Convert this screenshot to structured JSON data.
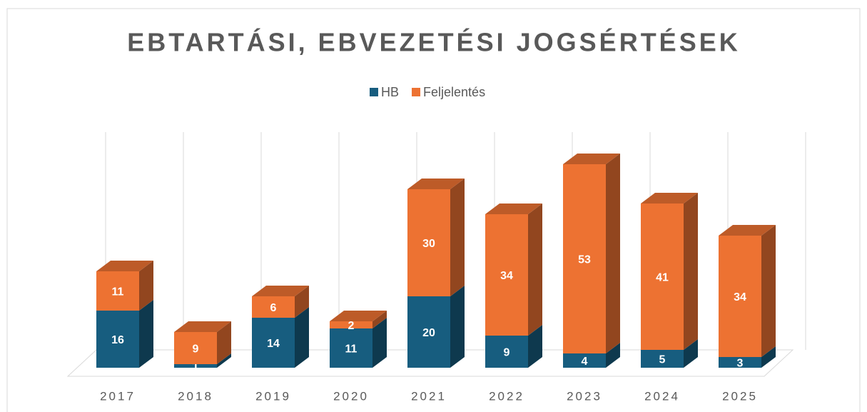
{
  "chart_data": {
    "type": "bar3d_stacked",
    "title": "EBTARTÁSI, EBVEZETÉSI JOGSÉRTÉSEK",
    "categories": [
      "2017",
      "2018",
      "2019",
      "2020",
      "2021",
      "2022",
      "2023",
      "2024",
      "2025"
    ],
    "series": [
      {
        "name": "HB",
        "color": "#175d7f",
        "values": [
          16,
          1,
          14,
          11,
          20,
          9,
          4,
          5,
          3
        ]
      },
      {
        "name": "Feljelentés",
        "color": "#ed7232",
        "values": [
          11,
          9,
          6,
          2,
          30,
          34,
          53,
          41,
          34
        ]
      }
    ],
    "legend": "top",
    "grid": true
  }
}
